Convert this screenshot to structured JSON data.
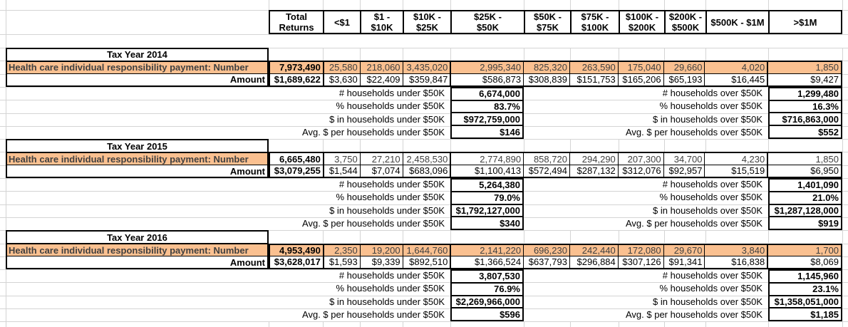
{
  "colors": {
    "highlight_orange": "#FAC090",
    "flag_green": "#1E7A3C",
    "gridline": "#D4D4D4",
    "border": "#000000",
    "muted_text": "#404040"
  },
  "header": {
    "columns": [
      "Total\nReturns",
      "<$1",
      "$1 -\n$10K",
      "$10K -\n$25K",
      "$25K -\n$50K",
      "$50K -\n$75K",
      "$75K -\n$100K",
      "$100K -\n$200K",
      "$200K -\n$500K",
      "$500K - $1M",
      ">$1M"
    ]
  },
  "years": [
    {
      "title": "Tax Year 2014",
      "number_label": "Health care individual responsibility payment: Number",
      "amount_label": "Amount",
      "number_row_highlight": true,
      "number": [
        "7,973,490",
        "25,580",
        "218,060",
        "3,435,020",
        "2,995,340",
        "825,320",
        "263,590",
        "175,040",
        "29,660",
        "4,020",
        "1,850"
      ],
      "amount": [
        "$1,689,622",
        "$3,630",
        "$22,409",
        "$359,847",
        "$586,873",
        "$308,839",
        "$151,753",
        "$165,206",
        "$65,193",
        "$16,445",
        "$9,427"
      ],
      "summary_under": [
        {
          "label": "# households under $50K",
          "value": "6,674,000",
          "flag": true
        },
        {
          "label": "% households under $50K",
          "value": "83.7%",
          "flag": false
        },
        {
          "label": "$ in households under $50K",
          "value": "$972,759,000",
          "flag": true
        },
        {
          "label": "Avg. $ per households under $50K",
          "value": "$146",
          "flag": false
        }
      ],
      "summary_over": [
        {
          "label": "# households over $50K",
          "value": "1,299,480",
          "flag": true
        },
        {
          "label": "% households over $50K",
          "value": "16.3%",
          "flag": false
        },
        {
          "label": "$ in households over $50K",
          "value": "$716,863,000",
          "flag": true
        },
        {
          "label": "Avg. $ per households over $50K",
          "value": "$552",
          "flag": false
        }
      ]
    },
    {
      "title": "Tax Year 2015",
      "number_label": "Health care individual responsibility payment: Number",
      "amount_label": "Amount",
      "number_row_highlight": false,
      "number": [
        "6,665,480",
        "3,750",
        "27,210",
        "2,458,530",
        "2,774,890",
        "858,720",
        "294,290",
        "207,300",
        "34,700",
        "4,230",
        "1,850"
      ],
      "amount": [
        "$3,079,255",
        "$1,544",
        "$7,074",
        "$683,096",
        "$1,100,413",
        "$572,494",
        "$287,132",
        "$312,076",
        "$92,957",
        "$15,519",
        "$6,950"
      ],
      "summary_under": [
        {
          "label": "# households under $50K",
          "value": "5,264,380",
          "flag": true
        },
        {
          "label": "% households under $50K",
          "value": "79.0%",
          "flag": false
        },
        {
          "label": "$ in households under $50K",
          "value": "$1,792,127,000",
          "flag": true
        },
        {
          "label": "Avg. $ per households under $50K",
          "value": "$340",
          "flag": false
        }
      ],
      "summary_over": [
        {
          "label": "# households over $50K",
          "value": "1,401,090",
          "flag": true
        },
        {
          "label": "% households over $50K",
          "value": "21.0%",
          "flag": false
        },
        {
          "label": "$ in households over $50K",
          "value": "$1,287,128,000",
          "flag": true
        },
        {
          "label": "Avg. $ per households over $50K",
          "value": "$919",
          "flag": false
        }
      ]
    },
    {
      "title": "Tax Year 2016",
      "number_label": "Health care individual responsibility payment: Number",
      "amount_label": "Amount",
      "number_row_highlight": true,
      "number": [
        "4,953,490",
        "2,350",
        "19,200",
        "1,644,760",
        "2,141,220",
        "696,230",
        "242,440",
        "172,080",
        "29,670",
        "3,840",
        "1,700"
      ],
      "amount": [
        "$3,628,017",
        "$1,593",
        "$9,339",
        "$892,510",
        "$1,366,524",
        "$637,793",
        "$296,884",
        "$307,126",
        "$91,341",
        "$16,838",
        "$8,069"
      ],
      "summary_under": [
        {
          "label": "# households under $50K",
          "value": "3,807,530",
          "flag": true
        },
        {
          "label": "% households under $50K",
          "value": "76.9%",
          "flag": false
        },
        {
          "label": "$ in households under $50K",
          "value": "$2,269,966,000",
          "flag": true
        },
        {
          "label": "Avg. $ per households under $50K",
          "value": "$596",
          "flag": false
        }
      ],
      "summary_over": [
        {
          "label": "# households over $50K",
          "value": "1,145,960",
          "flag": true
        },
        {
          "label": "% households over $50K",
          "value": "23.1%",
          "flag": false
        },
        {
          "label": "$ in households over $50K",
          "value": "$1,358,051,000",
          "flag": true
        },
        {
          "label": "Avg. $ per households over $50K",
          "value": "$1,185",
          "flag": false
        }
      ]
    }
  ]
}
